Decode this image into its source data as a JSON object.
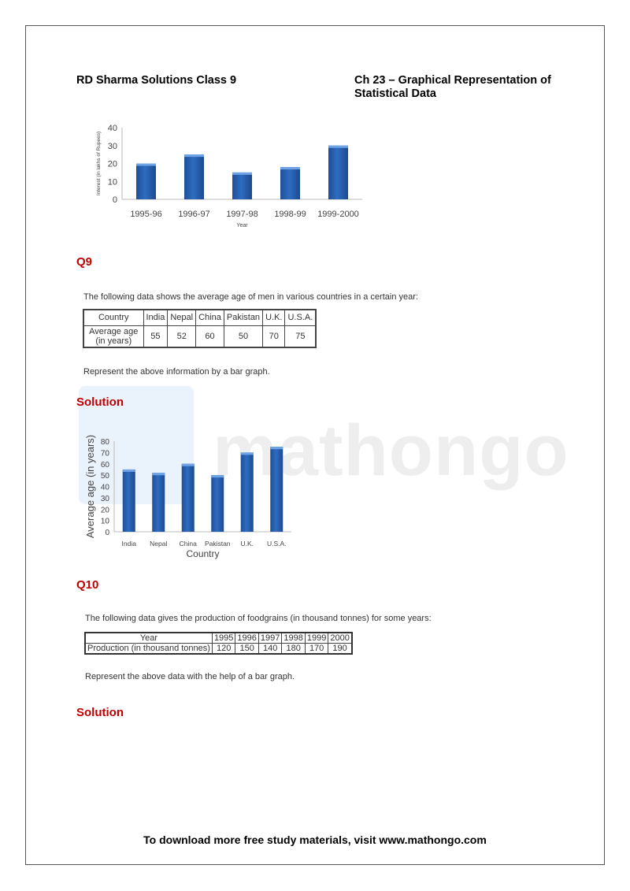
{
  "header": {
    "left": "RD Sharma Solutions Class 9",
    "right_line1": "Ch 23 – Graphical Representation of",
    "right_line2": "Statistical Data"
  },
  "watermark": "mathongo",
  "chart_data": [
    {
      "type": "bar",
      "categories": [
        "1995-96",
        "1996-97",
        "1997-98",
        "1998-99",
        "1999-2000"
      ],
      "values": [
        20,
        25,
        15,
        18,
        30
      ],
      "xlabel": "Year",
      "ylabel": "Interest (in lakhs of Rupees)",
      "ylim": [
        0,
        40
      ],
      "yticks": [
        0,
        10,
        20,
        30,
        40
      ],
      "bar_color": "#2f6cc0",
      "grid": false
    },
    {
      "type": "bar",
      "categories": [
        "India",
        "Nepal",
        "China",
        "Pakistan",
        "U.K.",
        "U.S.A."
      ],
      "values": [
        55,
        52,
        60,
        50,
        70,
        75
      ],
      "xlabel": "Country",
      "ylabel": "Average age (in years)",
      "ylim": [
        0,
        80
      ],
      "yticks": [
        0,
        10,
        20,
        30,
        40,
        50,
        60,
        70,
        80
      ],
      "bar_color": "#2f6cc0",
      "grid": false
    }
  ],
  "q9": {
    "label": "Q9",
    "text": "The following data shows the average age of men in various countries in a certain year:",
    "table": {
      "row1_header": "Country",
      "columns": [
        "India",
        "Nepal",
        "China",
        "Pakistan",
        "U.K.",
        "U.S.A."
      ],
      "row2_header_line1": "Average age",
      "row2_header_line2": "(in years)",
      "values": [
        "55",
        "52",
        "60",
        "50",
        "70",
        "75"
      ]
    },
    "instruction": "Represent the above information by a bar graph.",
    "solution": "Solution"
  },
  "q10": {
    "label": "Q10",
    "text": "The following data gives the production of foodgrains (in thousand tonnes) for some years:",
    "table": {
      "row1_header": "Year",
      "columns": [
        "1995",
        "1996",
        "1997",
        "1998",
        "1999",
        "2000"
      ],
      "row2_header": "Production (in thousand tonnes)",
      "values": [
        "120",
        "150",
        "140",
        "180",
        "170",
        "190"
      ]
    },
    "instruction": "Represent the above data with the help of a bar graph.",
    "solution": "Solution"
  },
  "footer": "To download more free study materials, visit www.mathongo.com",
  "colors": {
    "heading_red": "#c00000",
    "bar_blue": "#2f6cc0"
  }
}
